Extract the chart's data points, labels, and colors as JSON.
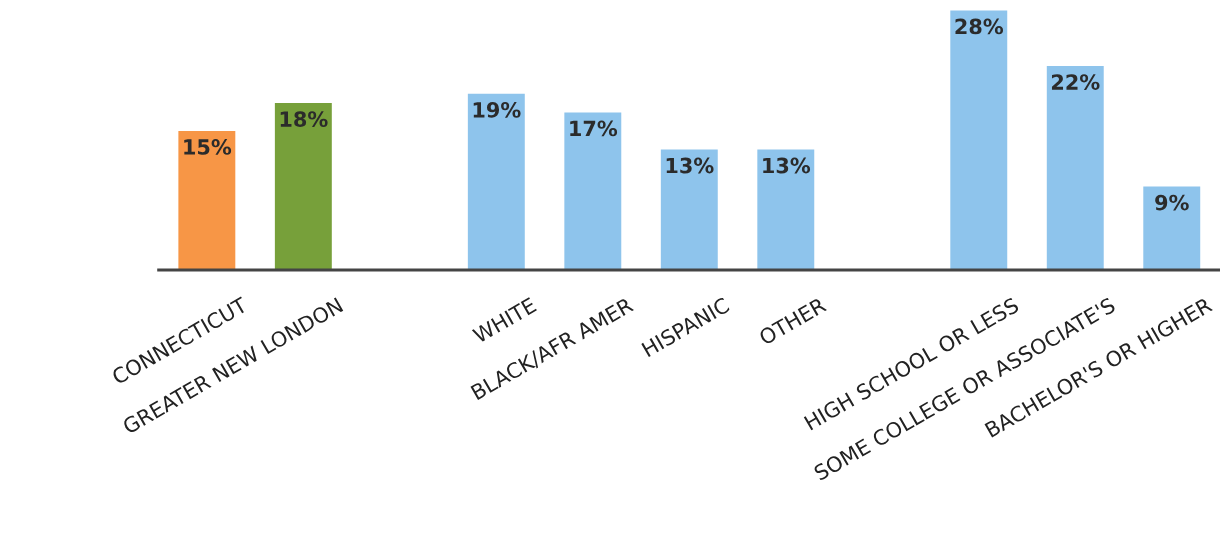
{
  "chart_data": {
    "type": "bar",
    "categories": [
      "CONNECTICUT",
      "GREATER NEW LONDON",
      null,
      "WHITE",
      "BLACK/AFR AMER",
      "HISPANIC",
      "OTHER",
      null,
      "HIGH SCHOOL OR LESS",
      "SOME COLLEGE OR ASSOCIATE'S",
      "BACHELOR'S OR HIGHER"
    ],
    "values": [
      15,
      18,
      null,
      19,
      17,
      13,
      13,
      null,
      28,
      22,
      9
    ],
    "value_labels": [
      "15%",
      "18%",
      null,
      "19%",
      "17%",
      "13%",
      "13%",
      null,
      "28%",
      "22%",
      "9%"
    ],
    "colors": [
      "#f79646",
      "#77a03a",
      null,
      "#8ec4ec",
      "#8ec4ec",
      "#8ec4ec",
      "#8ec4ec",
      null,
      "#8ec4ec",
      "#8ec4ec",
      "#8ec4ec"
    ],
    "orientation": "vertical"
  }
}
